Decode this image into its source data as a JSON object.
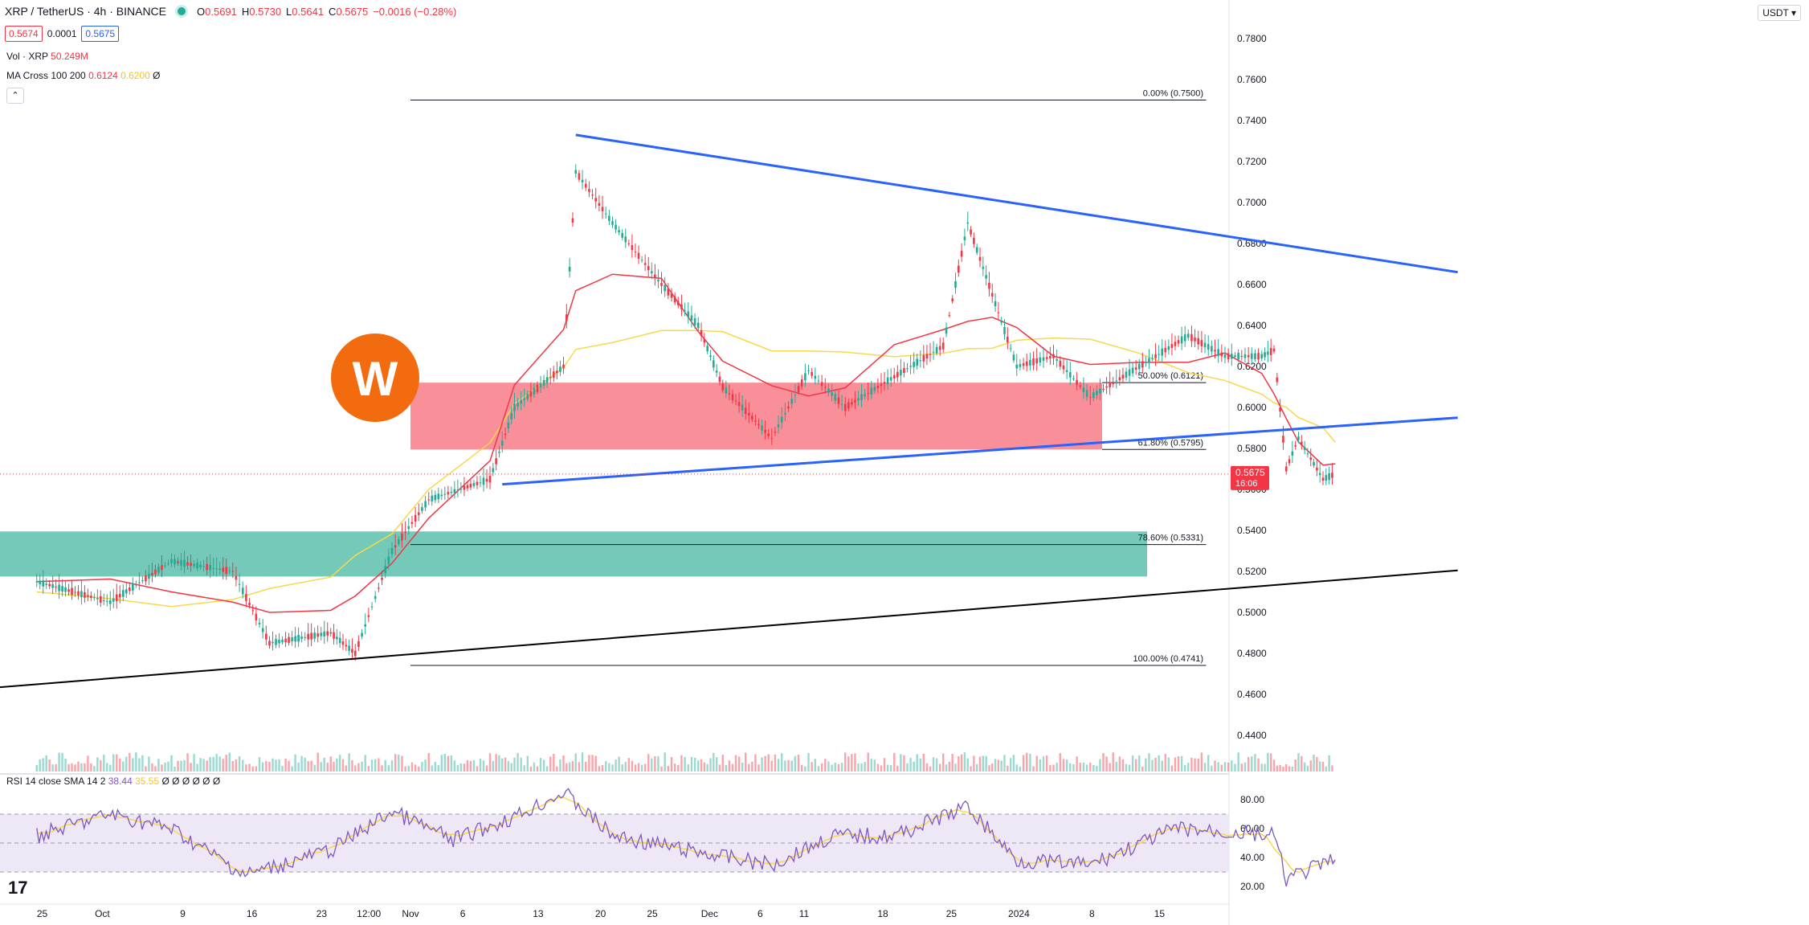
{
  "header": {
    "symbol": "XRP / TetherUS · 4h · BINANCE",
    "ohlc": [
      {
        "label": "O",
        "value": "0.5691"
      },
      {
        "label": "H",
        "value": "0.5730"
      },
      {
        "label": "L",
        "value": "0.5641"
      },
      {
        "label": "C",
        "value": "0.5675"
      }
    ],
    "change": "−0.0016 (−0.28%)",
    "bid": "0.5674",
    "spread": "0.0001",
    "ask": "0.5675"
  },
  "legend": {
    "vol_label": "Vol · XRP",
    "vol_value": "50.249M",
    "ma_label": "MA Cross 100 200",
    "ma_fast": "0.6124",
    "ma_slow": "0.6200",
    "ma_extra": "Ø",
    "rsi_label": "RSI 14 close SMA 14 2",
    "rsi_value": "38.44",
    "rsi_sma": "35.55",
    "rsi_extra": "Ø Ø Ø Ø Ø Ø"
  },
  "toolbar": {
    "collapse_icon": "chevron-up-icon",
    "currency": "USDT"
  },
  "colors": {
    "up": "#22ab94",
    "down": "#f23645",
    "ma100": "#f23645",
    "ma200": "#f7d84a",
    "trendline_blue": "#2962ff",
    "resistance_zone": "#f7737f",
    "support_zone": "#52bca6",
    "rsi": "#7e57c2",
    "rsi_sma": "#f7d84a",
    "rsi_band": "#ede7f6"
  },
  "chart_data": [
    {
      "type": "candlestick",
      "title": "XRP / TetherUS · 4h · BINANCE",
      "ylim": [
        0.42,
        0.79
      ],
      "y_ticks": [
        "0.7800",
        "0.7600",
        "0.7400",
        "0.7200",
        "0.7000",
        "0.6800",
        "0.6600",
        "0.6400",
        "0.6200",
        "0.6000",
        "0.5800",
        "0.5600",
        "0.5400",
        "0.5200",
        "0.5000",
        "0.4800",
        "0.4600",
        "0.4400"
      ],
      "x_ticks": [
        "25",
        "Oct",
        "9",
        "16",
        "23",
        "12:00",
        "Nov",
        "6",
        "13",
        "20",
        "25",
        "Dec",
        "6",
        "11",
        "18",
        "25",
        "2024",
        "8",
        "15"
      ],
      "close_path_approx": [
        {
          "x": "Sep 23",
          "y": 0.515
        },
        {
          "x": "Sep 29",
          "y": 0.505
        },
        {
          "x": "Oct 4",
          "y": 0.525
        },
        {
          "x": "Oct 9",
          "y": 0.52
        },
        {
          "x": "Oct 12",
          "y": 0.485
        },
        {
          "x": "Oct 17",
          "y": 0.49
        },
        {
          "x": "Oct 19",
          "y": 0.48
        },
        {
          "x": "Oct 22",
          "y": 0.53
        },
        {
          "x": "Oct 25",
          "y": 0.555
        },
        {
          "x": "Oct 30",
          "y": 0.565
        },
        {
          "x": "Nov 1",
          "y": 0.6
        },
        {
          "x": "Nov 5",
          "y": 0.62
        },
        {
          "x": "Nov 6",
          "y": 0.715
        },
        {
          "x": "Nov 9",
          "y": 0.69
        },
        {
          "x": "Nov 13",
          "y": 0.66
        },
        {
          "x": "Nov 16",
          "y": 0.64
        },
        {
          "x": "Nov 18",
          "y": 0.61
        },
        {
          "x": "Nov 22",
          "y": 0.585
        },
        {
          "x": "Nov 25",
          "y": 0.618
        },
        {
          "x": "Nov 28",
          "y": 0.6
        },
        {
          "x": "Dec 2",
          "y": 0.615
        },
        {
          "x": "Dec 6",
          "y": 0.63
        },
        {
          "x": "Dec 8",
          "y": 0.69
        },
        {
          "x": "Dec 10",
          "y": 0.655
        },
        {
          "x": "Dec 12",
          "y": 0.62
        },
        {
          "x": "Dec 15",
          "y": 0.625
        },
        {
          "x": "Dec 18",
          "y": 0.605
        },
        {
          "x": "Dec 22",
          "y": 0.62
        },
        {
          "x": "Dec 26",
          "y": 0.635
        },
        {
          "x": "Dec 29",
          "y": 0.625
        },
        {
          "x": "Jan 1",
          "y": 0.625
        },
        {
          "x": "Jan 2",
          "y": 0.628
        },
        {
          "x": "Jan 3",
          "y": 0.57
        },
        {
          "x": "Jan 4",
          "y": 0.585
        },
        {
          "x": "Jan 6",
          "y": 0.565
        },
        {
          "x": "Jan 7",
          "y": 0.5675
        }
      ],
      "last_price": {
        "value": "0.5675",
        "countdown": "16:06"
      },
      "fibonacci": [
        {
          "label": "0.00% (0.7500)",
          "y": 0.75
        },
        {
          "label": "50.00% (0.6121)",
          "y": 0.6121
        },
        {
          "label": "61.80% (0.5795)",
          "y": 0.5795
        },
        {
          "label": "78.60% (0.5331)",
          "y": 0.5331
        },
        {
          "label": "100.00% (0.4741)",
          "y": 0.4741
        }
      ],
      "zones": [
        {
          "kind": "resistance",
          "y_top": 0.6121,
          "y_bottom": 0.5795
        },
        {
          "kind": "support",
          "y_top": 0.5395,
          "y_bottom": 0.5175
        }
      ],
      "trendlines": [
        {
          "kind": "descending-resistance",
          "from": {
            "x": "Nov 6",
            "y": 0.733
          },
          "to": {
            "x": "Jan 17",
            "y": 0.666
          }
        },
        {
          "kind": "rising-mid",
          "from": {
            "x": "Oct 31",
            "y": 0.5625
          },
          "to": {
            "x": "Jan 17",
            "y": 0.595
          }
        },
        {
          "kind": "rising-support",
          "from": {
            "x": "Sep 20",
            "y": 0.4635
          },
          "to": {
            "x": "Jan 17",
            "y": 0.5205
          }
        }
      ]
    },
    {
      "type": "line",
      "title": "RSI 14 close SMA 14 2",
      "ylim": [
        15,
        90
      ],
      "y_ticks": [
        "80.00",
        "60.00",
        "40.00",
        "20.00"
      ],
      "bands": [
        70,
        50,
        30
      ],
      "rsi_path_approx": [
        {
          "x": "Sep 23",
          "y": 55
        },
        {
          "x": "Sep 29",
          "y": 70
        },
        {
          "x": "Oct 4",
          "y": 60
        },
        {
          "x": "Oct 10",
          "y": 28
        },
        {
          "x": "Oct 17",
          "y": 45
        },
        {
          "x": "Oct 22",
          "y": 72
        },
        {
          "x": "Oct 27",
          "y": 52
        },
        {
          "x": "Nov 1",
          "y": 68
        },
        {
          "x": "Nov 5",
          "y": 85
        },
        {
          "x": "Nov 9",
          "y": 55
        },
        {
          "x": "Nov 15",
          "y": 45
        },
        {
          "x": "Nov 22",
          "y": 35
        },
        {
          "x": "Nov 27",
          "y": 55
        },
        {
          "x": "Dec 2",
          "y": 55
        },
        {
          "x": "Dec 8",
          "y": 75
        },
        {
          "x": "Dec 12",
          "y": 38
        },
        {
          "x": "Dec 18",
          "y": 35
        },
        {
          "x": "Dec 25",
          "y": 60
        },
        {
          "x": "Jan 2",
          "y": 55
        },
        {
          "x": "Jan 3",
          "y": 25
        },
        {
          "x": "Jan 7",
          "y": 38.44
        }
      ]
    }
  ]
}
